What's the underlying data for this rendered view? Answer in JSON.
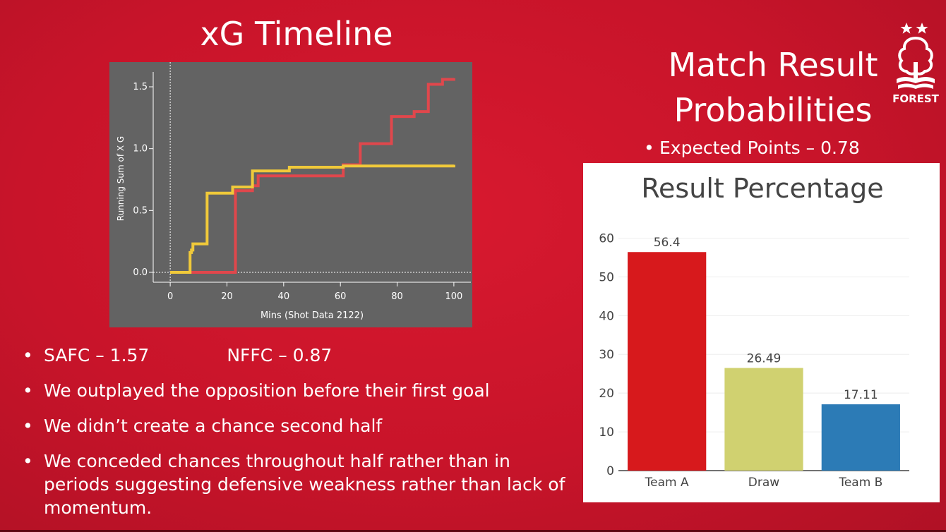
{
  "slide": {
    "title": "xG Timeline",
    "side_title_line1": "Match Result",
    "side_title_line2": "Probabilities",
    "expected_points": "Expected Points – 0.78",
    "bullet_symbol": "•",
    "logo_text": "FOREST",
    "bullets": {
      "safc": "SAFC – 1.57",
      "nffc": "NFFC – 0.87",
      "b2": "We outplayed the opposition before their first goal",
      "b3": "We didn’t create a chance second half",
      "b4": "We conceded chances throughout half rather than in periods suggesting defensive weakness rather than lack of momentum."
    },
    "colors": {
      "background": "#cc152b",
      "safc_line": "#e0474c",
      "nffc_line": "#f0c93a"
    }
  },
  "chart_data": [
    {
      "type": "line",
      "title": "",
      "xlabel": "Mins (Shot Data 2122)",
      "ylabel": "Running Sum of X G",
      "xlim": [
        -6,
        106
      ],
      "ylim": [
        -0.08,
        1.62
      ],
      "xticks": [
        0,
        20,
        40,
        60,
        80,
        100
      ],
      "yticks": [
        0.0,
        0.5,
        1.0,
        1.5
      ],
      "ytick_labels": [
        "0.0",
        "0.5",
        "1.0",
        "1.5"
      ],
      "grid": false,
      "background": "#636363",
      "series": [
        {
          "color": "#e0474c",
          "x": [
            0,
            12,
            14,
            23,
            29,
            31,
            61,
            67,
            78,
            86,
            91,
            96,
            100
          ],
          "y": [
            0.0,
            0.0,
            0.0,
            0.66,
            0.7,
            0.78,
            0.87,
            1.04,
            1.26,
            1.3,
            1.52,
            1.56,
            1.57
          ]
        },
        {
          "color": "#f0c93a",
          "x": [
            0,
            7,
            7.5,
            8,
            13,
            22,
            29,
            42,
            61,
            100
          ],
          "y": [
            0.0,
            0.16,
            0.18,
            0.23,
            0.64,
            0.69,
            0.82,
            0.85,
            0.86,
            0.87
          ]
        }
      ]
    },
    {
      "type": "bar",
      "title": "Result Percentage",
      "categories": [
        "Team A",
        "Draw",
        "Team B"
      ],
      "values": [
        56.4,
        26.49,
        17.11
      ],
      "value_labels": [
        "56.4",
        "26.49",
        "17.11"
      ],
      "colors": [
        "#d7191c",
        "#d0d170",
        "#2c7bb6"
      ],
      "ylim": [
        0,
        63
      ],
      "yticks": [
        0,
        10,
        20,
        30,
        40,
        50,
        60
      ],
      "grid": true,
      "xlabel": "",
      "ylabel": ""
    }
  ]
}
